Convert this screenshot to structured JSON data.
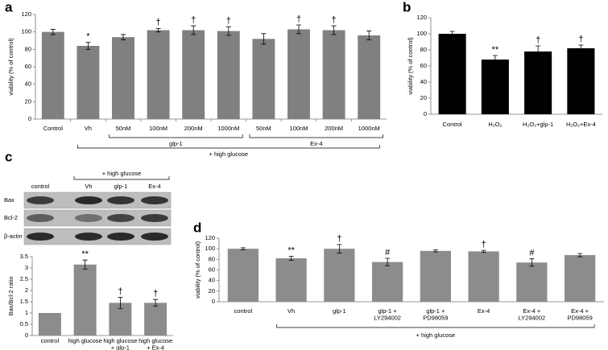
{
  "chart_data": [
    {
      "type": "bar",
      "panel": "a",
      "ylabel": "viability (% of control)",
      "color": "#808080",
      "categories": [
        "Control",
        "Vh",
        "50nM",
        "100nM",
        "200nM",
        "1000nM",
        "50nM",
        "100nM",
        "200nM",
        "1000nM"
      ],
      "values": [
        100,
        84,
        94,
        102,
        102,
        101,
        92,
        103,
        102,
        96
      ],
      "errors": [
        3,
        4,
        3,
        2,
        5,
        5,
        6,
        5,
        5,
        5
      ],
      "annotations": [
        null,
        "*",
        null,
        "†",
        "†",
        "†",
        null,
        "†",
        "†",
        null
      ],
      "groups": [
        "glp-1",
        "Ex-4"
      ],
      "bracket_label": "+ high glucose",
      "ylim": [
        0,
        120
      ],
      "yticks": [
        0,
        20,
        40,
        60,
        80,
        100,
        120
      ]
    },
    {
      "type": "bar",
      "panel": "b",
      "ylabel": "viability (% of control)",
      "color": "#000000",
      "categories": [
        "Control",
        "H₂O₂",
        "H₂O₂+glp-1",
        "H₂O₂+Ex-4"
      ],
      "values": [
        100,
        68,
        78,
        82
      ],
      "errors": [
        3,
        5,
        7,
        4
      ],
      "annotations": [
        null,
        "**",
        "†",
        "†"
      ],
      "ylim": [
        0,
        120
      ],
      "yticks": [
        0,
        20,
        40,
        60,
        80,
        100,
        120
      ]
    },
    {
      "type": "bar",
      "panel": "c",
      "ylabel": "Bax/Bcl-2 ratio",
      "color": "#8c8c8c",
      "blot": {
        "header": "+ high glucose",
        "lanes": [
          "control",
          "Vh",
          "glp-1",
          "Ex-4"
        ],
        "rows": [
          "Bax",
          "Bcl-2",
          "β-actin"
        ]
      },
      "categories": [
        "control",
        "high glucose",
        "high glucose\n+ glp-1",
        "high glucose\n+ Ex-4"
      ],
      "values": [
        1,
        3.15,
        1.45,
        1.45
      ],
      "errors": [
        0,
        0.2,
        0.25,
        0.15
      ],
      "annotations": [
        null,
        "**",
        "†",
        "†"
      ],
      "ylim": [
        0,
        3.5
      ],
      "yticks": [
        0,
        0.5,
        1,
        1.5,
        2,
        2.5,
        3,
        3.5
      ]
    },
    {
      "type": "bar",
      "panel": "d",
      "ylabel": "viability (% of control)",
      "color": "#8c8c8c",
      "categories": [
        "control",
        "Vh",
        "glp-1",
        "glp-1 +\nLY294002",
        "glp-1 +\nPD98059",
        "Ex-4",
        "Ex-4 +\nLY294002",
        "Ex-4 +\nPD98059"
      ],
      "values": [
        100,
        82,
        100,
        75,
        96,
        95,
        74,
        88
      ],
      "errors": [
        2,
        4,
        8,
        7,
        2,
        2,
        7,
        3
      ],
      "annotations": [
        null,
        "**",
        "†",
        "#",
        null,
        "†",
        "#",
        null
      ],
      "bracket_label": "+ high glucose",
      "ylim": [
        0,
        120
      ],
      "yticks": [
        0,
        20,
        40,
        60,
        80,
        100,
        120
      ]
    }
  ]
}
